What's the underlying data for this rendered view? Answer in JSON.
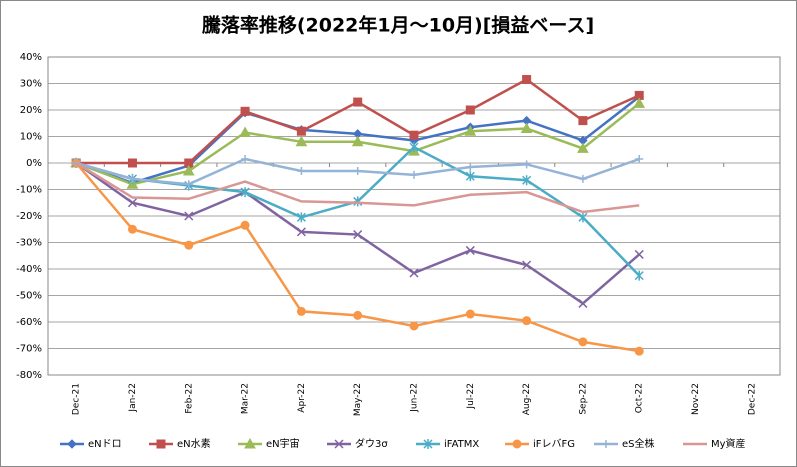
{
  "chart_data": {
    "type": "line",
    "title": "騰落率推移(2022年1月～10月)[損益ベース]",
    "categories": [
      "Dec-21",
      "Jan-22",
      "Feb-22",
      "Mar-22",
      "Apr-22",
      "May-22",
      "Jun-22",
      "Jul-22",
      "Aug-22",
      "Sep-22",
      "Oct-22",
      "Nov-22",
      "Dec-22"
    ],
    "series": [
      {
        "name": "eNドロ",
        "color": "#4472c4",
        "marker": "diamond",
        "values": [
          0,
          -7.5,
          -1,
          19,
          12.5,
          11,
          8.5,
          13.5,
          16,
          8.5,
          25,
          null,
          null
        ]
      },
      {
        "name": "eN水素",
        "color": "#c0504d",
        "marker": "square",
        "values": [
          0,
          0,
          0,
          19.5,
          12,
          23,
          10.5,
          20,
          31.5,
          16,
          25.5,
          null,
          null
        ]
      },
      {
        "name": "eN宇宙",
        "color": "#9bbb59",
        "marker": "triangle",
        "values": [
          0,
          -8,
          -3,
          11.5,
          8,
          8,
          4.5,
          12,
          13,
          5.5,
          22.5,
          null,
          null
        ]
      },
      {
        "name": "ダウ3σ",
        "color": "#8064a2",
        "marker": "x",
        "values": [
          0,
          -15,
          -20,
          -11,
          -26,
          -27,
          -41.5,
          -33,
          -38.5,
          -53,
          -34.5,
          null,
          null
        ]
      },
      {
        "name": "iFATMX",
        "color": "#4bacc6",
        "marker": "star",
        "values": [
          0,
          -6,
          -8.5,
          -11,
          -20.5,
          -14.5,
          6,
          -5,
          -6.5,
          -20.5,
          -42.5,
          null,
          null
        ]
      },
      {
        "name": "iFレバFG",
        "color": "#f79646",
        "marker": "circle",
        "values": [
          0,
          -25,
          -31,
          -23.5,
          -56,
          -57.5,
          -61.5,
          -57,
          -59.5,
          -67.5,
          -71,
          null,
          null
        ]
      },
      {
        "name": "eS全株",
        "color": "#95b3d7",
        "marker": "plus",
        "values": [
          0,
          -6,
          -8,
          1.5,
          -3,
          -3,
          -4.5,
          -1.5,
          -0.5,
          -6,
          1.5,
          null,
          null
        ]
      },
      {
        "name": "My資産",
        "color": "#d99694",
        "marker": "none",
        "values": [
          0,
          -13,
          -13.5,
          -7,
          -14.5,
          -15,
          -16,
          -12,
          -11,
          -18.5,
          -16,
          null,
          null
        ]
      }
    ],
    "ylim": [
      -80,
      40
    ],
    "yticks": [
      {
        "value": -80,
        "label": "-80%"
      },
      {
        "value": -70,
        "label": "-70%"
      },
      {
        "value": -60,
        "label": "-60%"
      },
      {
        "value": -50,
        "label": "-50%"
      },
      {
        "value": -40,
        "label": "-40%"
      },
      {
        "value": -30,
        "label": "-30%"
      },
      {
        "value": -20,
        "label": "-20%"
      },
      {
        "value": -10,
        "label": "-10%"
      },
      {
        "value": 0,
        "label": "0%"
      },
      {
        "value": 10,
        "label": "10%"
      },
      {
        "value": 20,
        "label": "20%"
      },
      {
        "value": 30,
        "label": "30%"
      },
      {
        "value": 40,
        "label": "40%"
      }
    ],
    "grid": true,
    "legend": "bottom"
  }
}
